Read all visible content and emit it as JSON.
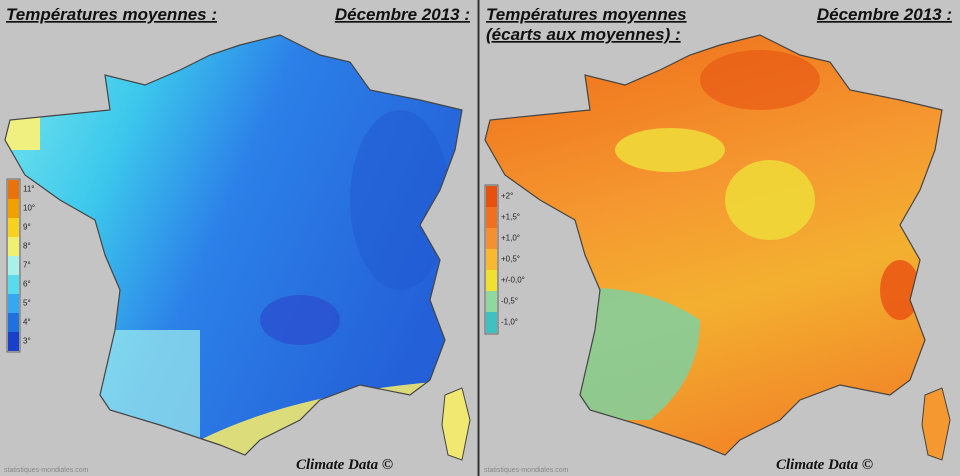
{
  "left": {
    "title": "Températures moyennes :",
    "period": "Décembre 2013 :",
    "legend": [
      {
        "label": "11°",
        "color": "#e8720c"
      },
      {
        "label": "10°",
        "color": "#f2a000"
      },
      {
        "label": "9°",
        "color": "#f8d020"
      },
      {
        "label": "8°",
        "color": "#f0f070"
      },
      {
        "label": "7°",
        "color": "#a8f0e8"
      },
      {
        "label": "6°",
        "color": "#58dced"
      },
      {
        "label": "5°",
        "color": "#34a8f0"
      },
      {
        "label": "4°",
        "color": "#2070e0"
      },
      {
        "label": "3°",
        "color": "#1840c8"
      }
    ],
    "credit": "Climate Data ©",
    "source": "statistiques-mondiales.com"
  },
  "right": {
    "title_lines": [
      "Températures moyennes",
      "(écarts aux moyennes) :"
    ],
    "period": "Décembre 2013 :",
    "legend": [
      {
        "label": "+2°",
        "color": "#e85010"
      },
      {
        "label": "+1,5°",
        "color": "#f07020"
      },
      {
        "label": "+1,0°",
        "color": "#f59030"
      },
      {
        "label": "+0,5°",
        "color": "#f8b830"
      },
      {
        "label": "+/-0,0°",
        "color": "#f0e030"
      },
      {
        "label": "-0,5°",
        "color": "#90d8a0"
      },
      {
        "label": "-1,0°",
        "color": "#40c0c0"
      }
    ],
    "credit": "Climate Data ©",
    "source": "statistiques-mondiales.com"
  }
}
